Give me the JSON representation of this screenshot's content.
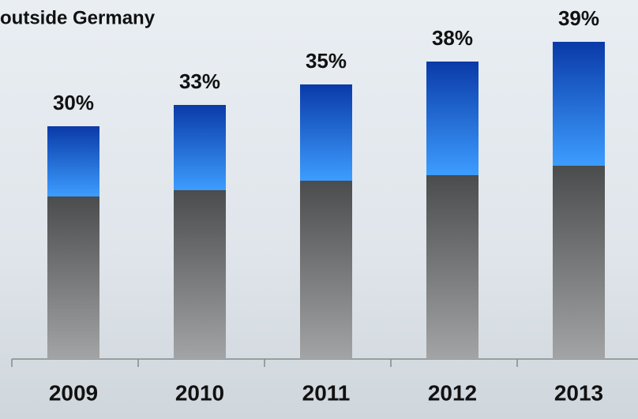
{
  "chart_data": {
    "type": "bar",
    "stacked": true,
    "title": "outside Germany",
    "categories": [
      "2009",
      "2010",
      "2011",
      "2012",
      "2013"
    ],
    "series": [
      {
        "color": "#8a8d90",
        "values": [
          206,
          214,
          226,
          233,
          245
        ]
      },
      {
        "color": "#1f6fe8",
        "values": [
          89,
          108,
          122,
          144,
          157
        ]
      }
    ],
    "annotations": [
      "30%",
      "33%",
      "35%",
      "38%",
      "39%"
    ],
    "ylim": [
      0,
      420
    ]
  }
}
